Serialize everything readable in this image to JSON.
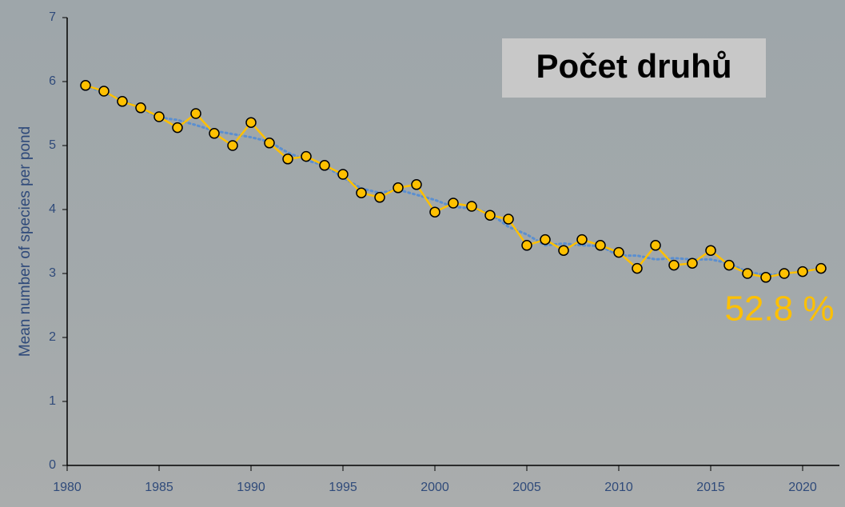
{
  "chart_data": {
    "type": "line",
    "y_label": "Mean number of species per pond",
    "annotations": [
      "Počet druhů",
      "52.8 %"
    ],
    "x": [
      1981,
      1982,
      1983,
      1984,
      1985,
      1986,
      1987,
      1988,
      1989,
      1990,
      1991,
      1992,
      1993,
      1994,
      1995,
      1996,
      1997,
      1998,
      1999,
      2000,
      2001,
      2002,
      2003,
      2004,
      2005,
      2006,
      2007,
      2008,
      2009,
      2010,
      2011,
      2012,
      2013,
      2014,
      2015,
      2016,
      2017,
      2018,
      2019,
      2020,
      2021
    ],
    "series": [
      {
        "color": "#ffc000",
        "style": "solid",
        "markers": true,
        "values": [
          5.94,
          5.85,
          5.69,
          5.59,
          5.45,
          5.28,
          5.5,
          5.19,
          5.0,
          5.36,
          5.04,
          4.79,
          4.83,
          4.69,
          4.55,
          4.26,
          4.19,
          4.34,
          4.39,
          3.96,
          4.1,
          4.05,
          3.91,
          3.85,
          3.44,
          3.53,
          3.36,
          3.53,
          3.44,
          3.33,
          3.08,
          3.44,
          3.13,
          3.16,
          3.36,
          3.13,
          3.0,
          2.94,
          3.0,
          3.03,
          3.08
        ]
      },
      {
        "color": "#5b8fd0",
        "style": "dotted",
        "markers": false,
        "values": [
          5.94,
          5.83,
          5.71,
          5.58,
          5.44,
          5.4,
          5.32,
          5.23,
          5.18,
          5.13,
          5.06,
          4.89,
          4.77,
          4.69,
          4.5,
          4.33,
          4.26,
          4.31,
          4.23,
          4.15,
          4.04,
          4.02,
          3.94,
          3.73,
          3.61,
          3.44,
          3.47,
          3.44,
          3.43,
          3.28,
          3.28,
          3.22,
          3.24,
          3.22,
          3.22,
          3.16,
          3.02,
          2.98,
          2.99,
          3.04,
          3.08
        ]
      }
    ],
    "xlim": [
      1980,
      2022
    ],
    "ylim": [
      0,
      7
    ],
    "xticks": [
      1980,
      1985,
      1990,
      1995,
      2000,
      2005,
      2010,
      2015,
      2020
    ],
    "yticks": [
      0,
      1,
      2,
      3,
      4,
      5,
      6,
      7
    ]
  }
}
